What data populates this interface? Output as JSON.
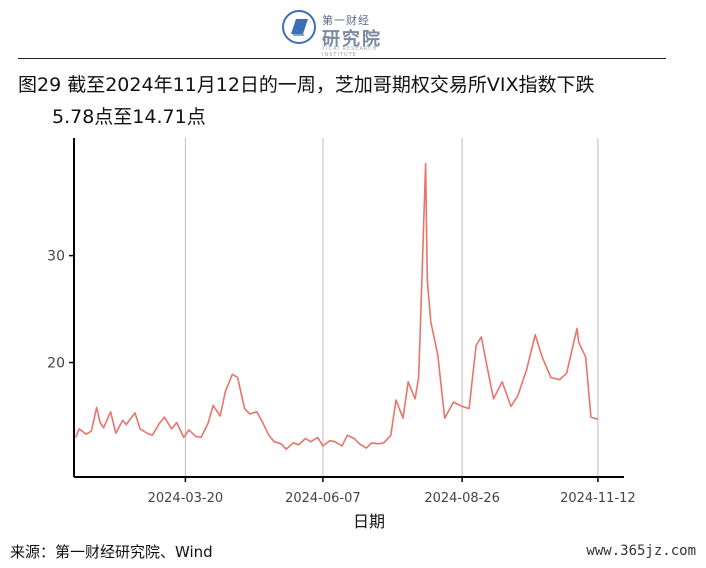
{
  "logo": {
    "small_text": "第一财经",
    "name": "研究院",
    "sub_text": "YICAI RESEARCH INSTITUTE"
  },
  "title": {
    "line1": "图29  截至2024年11月12日的一周，芝加哥期权交易所VIX指数下跌",
    "line2": "5.78点至14.71点"
  },
  "source": "来源：第一财经研究院、Wind",
  "watermark": "www.365jz.com",
  "colors": {
    "line": "#e8756b",
    "grid": "#bdbdbd",
    "axis": "#000000"
  },
  "chart_data": {
    "type": "line",
    "title": "",
    "xlabel": "日期",
    "ylabel": "",
    "x_ticks": [
      "2024-03-20",
      "2024-06-07",
      "2024-08-26",
      "2024-11-12"
    ],
    "y_ticks": [
      20,
      30
    ],
    "xlim": [
      "2024-01-16",
      "2024-11-27"
    ],
    "ylim": [
      9.3,
      41
    ],
    "grid": "vertical lines at x ticks",
    "series": [
      {
        "name": "",
        "x": [
          "2024-01-17",
          "2024-01-19",
          "2024-01-23",
          "2024-01-26",
          "2024-01-29",
          "2024-01-31",
          "2024-02-02",
          "2024-02-06",
          "2024-02-09",
          "2024-02-13",
          "2024-02-15",
          "2024-02-20",
          "2024-02-23",
          "2024-02-27",
          "2024-03-01",
          "2024-03-05",
          "2024-03-08",
          "2024-03-12",
          "2024-03-15",
          "2024-03-19",
          "2024-03-22",
          "2024-03-26",
          "2024-03-29",
          "2024-04-02",
          "2024-04-05",
          "2024-04-09",
          "2024-04-12",
          "2024-04-16",
          "2024-04-19",
          "2024-04-23",
          "2024-04-26",
          "2024-04-30",
          "2024-05-03",
          "2024-05-07",
          "2024-05-10",
          "2024-05-14",
          "2024-05-17",
          "2024-05-21",
          "2024-05-24",
          "2024-05-28",
          "2024-05-31",
          "2024-06-04",
          "2024-06-07",
          "2024-06-11",
          "2024-06-14",
          "2024-06-18",
          "2024-06-21",
          "2024-06-25",
          "2024-06-28",
          "2024-07-02",
          "2024-07-05",
          "2024-07-09",
          "2024-07-12",
          "2024-07-16",
          "2024-07-19",
          "2024-07-23",
          "2024-07-26",
          "2024-07-30",
          "2024-08-01",
          "2024-08-02",
          "2024-08-05",
          "2024-08-06",
          "2024-08-08",
          "2024-08-12",
          "2024-08-16",
          "2024-08-21",
          "2024-08-26",
          "2024-08-30",
          "2024-09-03",
          "2024-09-06",
          "2024-09-10",
          "2024-09-13",
          "2024-09-18",
          "2024-09-23",
          "2024-09-27",
          "2024-10-02",
          "2024-10-07",
          "2024-10-11",
          "2024-10-16",
          "2024-10-21",
          "2024-10-25",
          "2024-10-31",
          "2024-11-01",
          "2024-11-05",
          "2024-11-08",
          "2024-11-12"
        ],
        "y": [
          13.0,
          13.8,
          13.3,
          13.6,
          15.8,
          14.4,
          13.9,
          15.4,
          13.4,
          14.6,
          14.2,
          15.3,
          13.8,
          13.4,
          13.2,
          14.3,
          14.9,
          13.8,
          14.4,
          13.0,
          13.7,
          13.1,
          13.0,
          14.3,
          16.0,
          15.0,
          17.3,
          18.9,
          18.6,
          15.7,
          15.2,
          15.4,
          14.5,
          13.2,
          12.6,
          12.4,
          11.9,
          12.5,
          12.3,
          12.9,
          12.6,
          13.0,
          12.2,
          12.7,
          12.6,
          12.2,
          13.2,
          12.9,
          12.4,
          12.0,
          12.5,
          12.4,
          12.5,
          13.2,
          16.5,
          14.8,
          18.2,
          16.6,
          18.6,
          23.4,
          38.6,
          27.7,
          23.8,
          20.7,
          14.8,
          16.3,
          15.9,
          15.7,
          21.6,
          22.4,
          19.1,
          16.6,
          18.2,
          15.9,
          16.9,
          19.3,
          22.6,
          20.5,
          18.6,
          18.4,
          19.0,
          23.2,
          21.9,
          20.5,
          14.9,
          14.7
        ]
      }
    ]
  }
}
